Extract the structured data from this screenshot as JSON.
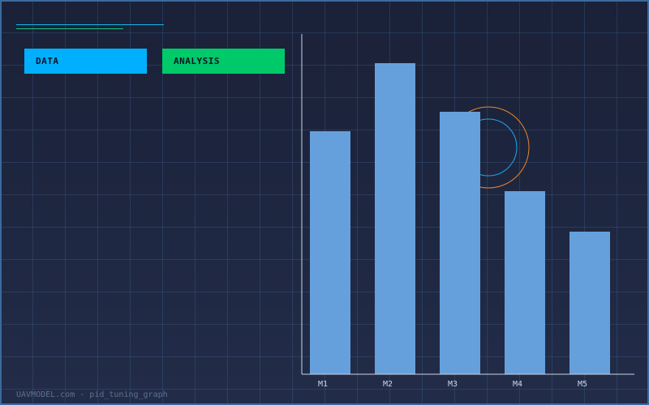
{
  "header": {
    "buttons": [
      {
        "label": "DATA",
        "color": "#00b0ff"
      },
      {
        "label": "ANALYSIS",
        "color": "#00c96a"
      }
    ]
  },
  "footer": {
    "text": "UAVMODEL.com - pid_tuning_graph"
  },
  "colors": {
    "bar": "#65a0dc",
    "ring_outer": "#e8862a",
    "ring_inner": "#1aa8e8",
    "axis": "#c9d4e6"
  },
  "chart_data": {
    "type": "bar",
    "categories": [
      "M1",
      "M2",
      "M3",
      "M4",
      "M5"
    ],
    "values": [
      150,
      192,
      162,
      113,
      88
    ],
    "title": "",
    "xlabel": "",
    "ylabel": "",
    "ylim": [
      0,
      210
    ],
    "grid": true
  }
}
